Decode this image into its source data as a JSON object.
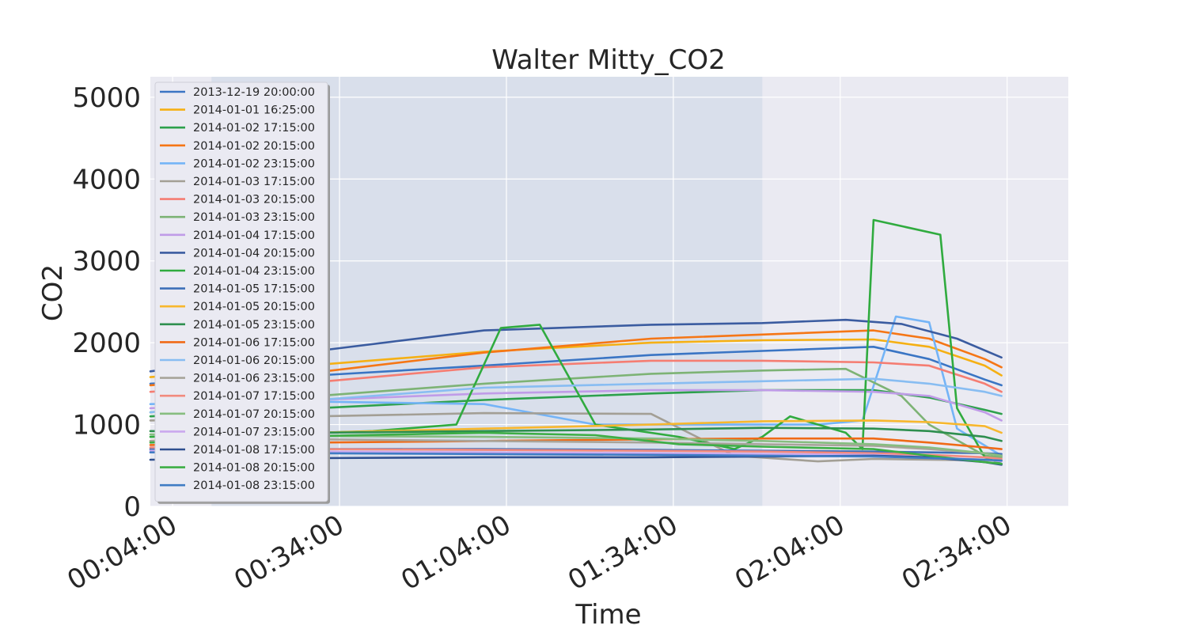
{
  "chart_data": {
    "type": "line",
    "title": "Walter Mitty_CO2",
    "xlabel": "Time",
    "ylabel": "CO2",
    "xlim": [
      "00:00:00",
      "02:45:00"
    ],
    "ylim": [
      0,
      5250
    ],
    "xticks": [
      "00:04:00",
      "00:34:00",
      "01:04:00",
      "01:34:00",
      "02:04:00",
      "02:34:00"
    ],
    "yticks": [
      0,
      1000,
      2000,
      3000,
      4000,
      5000
    ],
    "grid": true,
    "legend_position": "top-left",
    "shaded_region": {
      "start": "00:11:00",
      "end": "01:50:00",
      "color": "#d9dfeb"
    },
    "background_color": "#eaeaf2",
    "series": [
      {
        "name": "2013-12-19 20:00:00",
        "color": "#3a75c4",
        "x": [
          "00:00",
          "00:30",
          "01:00",
          "01:30",
          "01:50",
          "02:10",
          "02:20",
          "02:30",
          "02:33"
        ],
        "y": [
          1500,
          1600,
          1720,
          1850,
          1900,
          1950,
          1800,
          1550,
          1480
        ]
      },
      {
        "name": "2014-01-01 16:25:00",
        "color": "#f5b014",
        "x": [
          "00:00",
          "00:30",
          "01:00",
          "01:30",
          "01:50",
          "02:10",
          "02:20",
          "02:30",
          "02:33"
        ],
        "y": [
          1580,
          1730,
          1890,
          2000,
          2030,
          2040,
          1950,
          1720,
          1600
        ]
      },
      {
        "name": "2014-01-02 17:15:00",
        "color": "#2da14c",
        "x": [
          "00:00",
          "00:30",
          "01:00",
          "01:30",
          "01:50",
          "02:10",
          "02:20",
          "02:30",
          "02:33"
        ],
        "y": [
          1100,
          1200,
          1300,
          1380,
          1420,
          1420,
          1330,
          1180,
          1130
        ]
      },
      {
        "name": "2014-01-02 20:15:00",
        "color": "#f57616",
        "x": [
          "00:00",
          "00:30",
          "01:00",
          "01:30",
          "01:50",
          "02:10",
          "02:20",
          "02:30",
          "02:33"
        ],
        "y": [
          1480,
          1640,
          1880,
          2050,
          2100,
          2150,
          2050,
          1800,
          1700
        ]
      },
      {
        "name": "2014-01-02 23:15:00",
        "color": "#74b4f7",
        "x": [
          "00:00",
          "00:30",
          "01:00",
          "01:20",
          "01:40",
          "02:00",
          "02:08",
          "02:14",
          "02:20",
          "02:25",
          "02:33"
        ],
        "y": [
          1250,
          1280,
          1250,
          1000,
          1000,
          1000,
          1050,
          2320,
          2250,
          950,
          620
        ]
      },
      {
        "name": "2014-01-03 17:15:00",
        "color": "#a39f95",
        "x": [
          "00:00",
          "00:30",
          "01:00",
          "01:30",
          "01:45",
          "02:00",
          "02:10",
          "02:20",
          "02:33"
        ],
        "y": [
          1050,
          1100,
          1140,
          1130,
          620,
          550,
          580,
          570,
          560
        ]
      },
      {
        "name": "2014-01-03 20:15:00",
        "color": "#f57d72",
        "x": [
          "00:00",
          "00:30",
          "01:00",
          "01:30",
          "01:50",
          "02:10",
          "02:20",
          "02:30",
          "02:33"
        ],
        "y": [
          1400,
          1520,
          1700,
          1780,
          1780,
          1760,
          1720,
          1500,
          1400
        ]
      },
      {
        "name": "2014-01-03 23:15:00",
        "color": "#7db375",
        "x": [
          "00:00",
          "00:30",
          "01:00",
          "01:30",
          "01:50",
          "02:05",
          "02:15",
          "02:20",
          "02:30",
          "02:33"
        ],
        "y": [
          1150,
          1350,
          1500,
          1620,
          1660,
          1680,
          1350,
          1000,
          620,
          600
        ]
      },
      {
        "name": "2014-01-04 17:15:00",
        "color": "#c09ce8",
        "x": [
          "00:00",
          "00:30",
          "01:00",
          "01:30",
          "01:50",
          "02:10",
          "02:20",
          "02:30",
          "02:33"
        ],
        "y": [
          1200,
          1300,
          1380,
          1420,
          1420,
          1400,
          1350,
          1150,
          1050
        ]
      },
      {
        "name": "2014-01-04 20:15:00",
        "color": "#3b5ca0",
        "x": [
          "00:00",
          "00:30",
          "01:00",
          "01:30",
          "01:50",
          "02:05",
          "02:15",
          "02:25",
          "02:33"
        ],
        "y": [
          1650,
          1900,
          2150,
          2220,
          2240,
          2280,
          2230,
          2050,
          1820
        ]
      },
      {
        "name": "2014-01-04 23:15:00",
        "color": "#30ab3f",
        "x": [
          "00:00",
          "00:20",
          "00:40",
          "00:55",
          "01:03",
          "01:10",
          "01:20",
          "01:35",
          "01:45",
          "01:50",
          "01:55",
          "02:05",
          "02:08",
          "02:10",
          "02:22",
          "02:25",
          "02:30",
          "02:33"
        ],
        "y": [
          850,
          880,
          920,
          1000,
          2180,
          2220,
          1000,
          850,
          700,
          850,
          1100,
          900,
          700,
          3500,
          3320,
          1200,
          600,
          520
        ]
      },
      {
        "name": "2014-01-05 17:15:00",
        "color": "#3d6fb8",
        "x": [
          "00:00",
          "00:30",
          "01:00",
          "01:30",
          "01:50",
          "02:10",
          "02:20",
          "02:30",
          "02:33"
        ],
        "y": [
          700,
          700,
          700,
          690,
          680,
          670,
          660,
          650,
          640
        ]
      },
      {
        "name": "2014-01-05 20:15:00",
        "color": "#f7b72d",
        "x": [
          "00:00",
          "00:30",
          "01:00",
          "01:30",
          "01:50",
          "02:10",
          "02:20",
          "02:30",
          "02:33"
        ],
        "y": [
          800,
          900,
          950,
          1000,
          1040,
          1050,
          1030,
          980,
          900
        ]
      },
      {
        "name": "2014-01-05 23:15:00",
        "color": "#2e8f4f",
        "x": [
          "00:00",
          "00:30",
          "01:00",
          "01:30",
          "01:50",
          "02:10",
          "02:20",
          "02:30",
          "02:33"
        ],
        "y": [
          920,
          900,
          920,
          940,
          960,
          950,
          920,
          850,
          800
        ]
      },
      {
        "name": "2014-01-06 17:15:00",
        "color": "#f06a16",
        "x": [
          "00:00",
          "00:30",
          "01:00",
          "01:30",
          "01:50",
          "02:10",
          "02:20",
          "02:30",
          "02:33"
        ],
        "y": [
          750,
          780,
          800,
          820,
          830,
          830,
          780,
          720,
          700
        ]
      },
      {
        "name": "2014-01-06 20:15:00",
        "color": "#88bdf2",
        "x": [
          "00:00",
          "00:30",
          "01:00",
          "01:30",
          "01:50",
          "02:10",
          "02:20",
          "02:30",
          "02:33"
        ],
        "y": [
          1150,
          1300,
          1450,
          1500,
          1530,
          1560,
          1500,
          1400,
          1350
        ]
      },
      {
        "name": "2014-01-06 23:15:00",
        "color": "#a8a49a",
        "x": [
          "00:00",
          "00:30",
          "01:00",
          "01:30",
          "01:50",
          "02:10",
          "02:20",
          "02:30",
          "02:33"
        ],
        "y": [
          800,
          820,
          800,
          780,
          760,
          740,
          700,
          650,
          620
        ]
      },
      {
        "name": "2014-01-07 17:15:00",
        "color": "#f28a7e",
        "x": [
          "00:00",
          "00:30",
          "01:00",
          "01:30",
          "01:50",
          "02:10",
          "02:20",
          "02:30",
          "02:33"
        ],
        "y": [
          720,
          700,
          690,
          680,
          670,
          650,
          630,
          600,
          580
        ]
      },
      {
        "name": "2014-01-07 20:15:00",
        "color": "#87bd80",
        "x": [
          "00:00",
          "00:30",
          "01:00",
          "01:30",
          "01:50",
          "02:10",
          "02:20",
          "02:30",
          "02:33"
        ],
        "y": [
          880,
          860,
          850,
          830,
          800,
          760,
          720,
          650,
          620
        ]
      },
      {
        "name": "2014-01-07 23:15:00",
        "color": "#caa8ee",
        "x": [
          "00:00",
          "00:30",
          "01:00",
          "01:30",
          "01:50",
          "02:10",
          "02:20",
          "02:30",
          "02:33"
        ],
        "y": [
          680,
          670,
          660,
          650,
          640,
          630,
          600,
          570,
          550
        ]
      },
      {
        "name": "2014-01-08 17:15:00",
        "color": "#2f4f8f",
        "x": [
          "00:00",
          "00:30",
          "01:00",
          "01:30",
          "01:50",
          "02:10",
          "02:20",
          "02:30",
          "02:33"
        ],
        "y": [
          570,
          590,
          600,
          600,
          610,
          620,
          600,
          540,
          510
        ]
      },
      {
        "name": "2014-01-08 20:15:00",
        "color": "#3dae45",
        "x": [
          "00:00",
          "00:30",
          "01:00",
          "01:20",
          "01:35",
          "01:50",
          "02:10",
          "02:20",
          "02:30",
          "02:33"
        ],
        "y": [
          780,
          860,
          900,
          870,
          760,
          730,
          700,
          620,
          540,
          520
        ]
      },
      {
        "name": "2014-01-08 23:15:00",
        "color": "#3f7cc4",
        "x": [
          "00:00",
          "00:30",
          "01:00",
          "01:30",
          "01:50",
          "02:10",
          "02:20",
          "02:30",
          "02:33"
        ],
        "y": [
          660,
          650,
          640,
          630,
          620,
          610,
          590,
          570,
          560
        ]
      }
    ]
  }
}
